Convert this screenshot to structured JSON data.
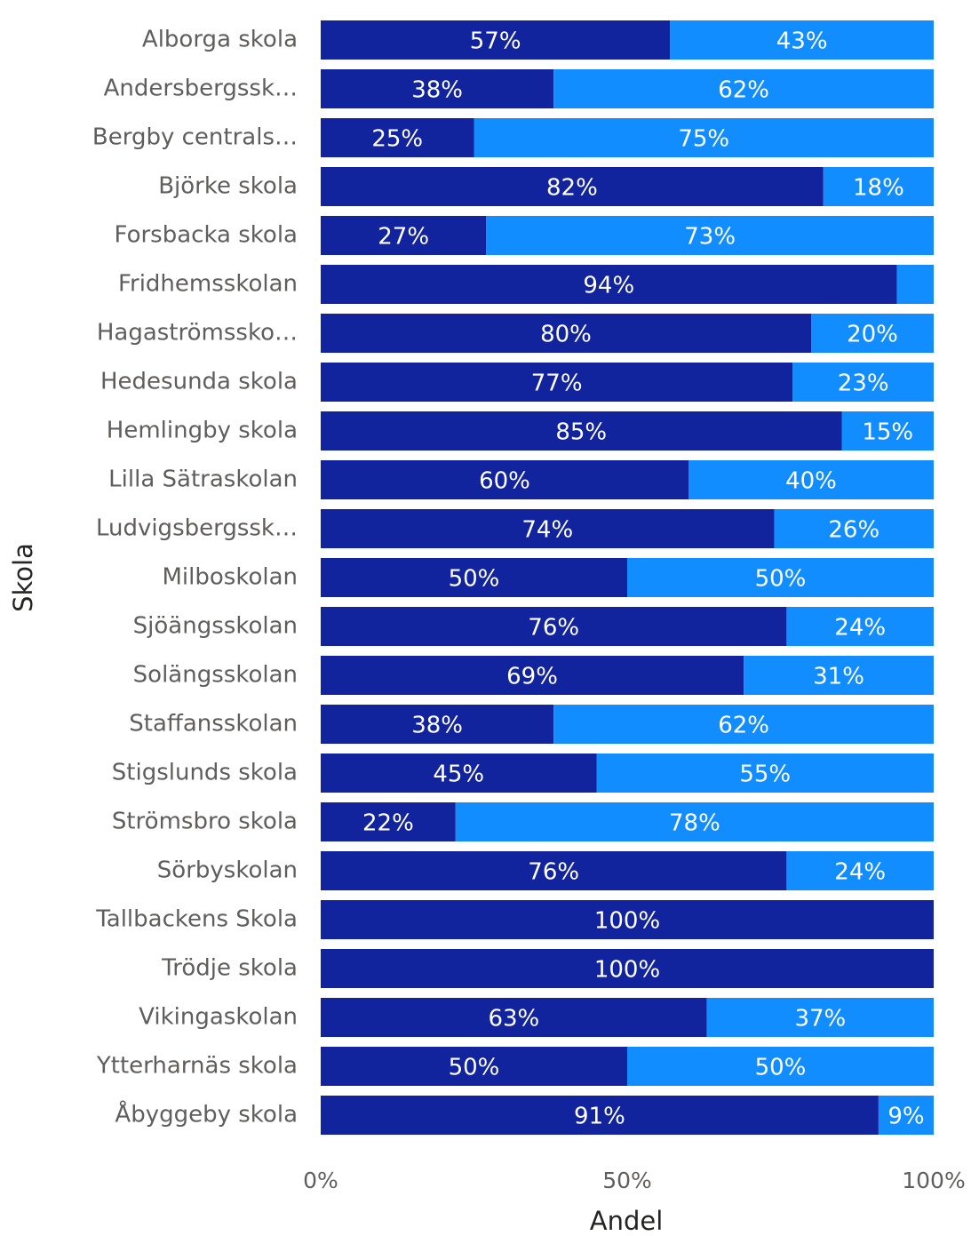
{
  "chart_data": {
    "type": "stacked-bar-horizontal",
    "x_label": "Andel",
    "y_label": "Skola",
    "categories": [
      "Alborga skola",
      "Andersbergssk…",
      "Bergby centrals…",
      "Björke skola",
      "Forsbacka skola",
      "Fridhemsskolan",
      "Hagaströmssko…",
      "Hedesunda skola",
      "Hemlingby skola",
      "Lilla Sätraskolan",
      "Ludvigsbergssk…",
      "Milboskolan",
      "Sjöängsskolan",
      "Solängsskolan",
      "Staffansskolan",
      "Stigslunds skola",
      "Strömsbro skola",
      "Sörbyskolan",
      "Tallbackens Skola",
      "Trödje skola",
      "Vikingaskolan",
      "Ytterharnäs skola",
      "Åbyggeby skola"
    ],
    "series": [
      {
        "color": "#12239e",
        "values": [
          57,
          38,
          25,
          82,
          27,
          94,
          80,
          77,
          85,
          60,
          74,
          50,
          76,
          69,
          38,
          45,
          22,
          76,
          100,
          100,
          63,
          50,
          91
        ],
        "value_labels": [
          "57%",
          "38%",
          "25%",
          "82%",
          "27%",
          "94%",
          "80%",
          "77%",
          "85%",
          "60%",
          "74%",
          "50%",
          "76%",
          "69%",
          "38%",
          "45%",
          "22%",
          "76%",
          "100%",
          "100%",
          "63%",
          "50%",
          "91%"
        ]
      },
      {
        "color": "#118dff",
        "values": [
          43,
          62,
          75,
          18,
          73,
          6,
          20,
          23,
          15,
          40,
          26,
          50,
          24,
          31,
          62,
          55,
          78,
          24,
          0,
          0,
          37,
          50,
          9
        ],
        "value_labels": [
          "43%",
          "62%",
          "75%",
          "18%",
          "73%",
          null,
          "20%",
          "23%",
          "15%",
          "40%",
          "26%",
          "50%",
          "24%",
          "31%",
          "62%",
          "55%",
          "78%",
          "24%",
          null,
          null,
          "37%",
          "50%",
          "9%"
        ]
      }
    ],
    "xlim": [
      0,
      100
    ],
    "xticks": [
      {
        "value": 0,
        "label": "0%"
      },
      {
        "value": 50,
        "label": "50%"
      },
      {
        "value": 100,
        "label": "100%"
      }
    ]
  }
}
